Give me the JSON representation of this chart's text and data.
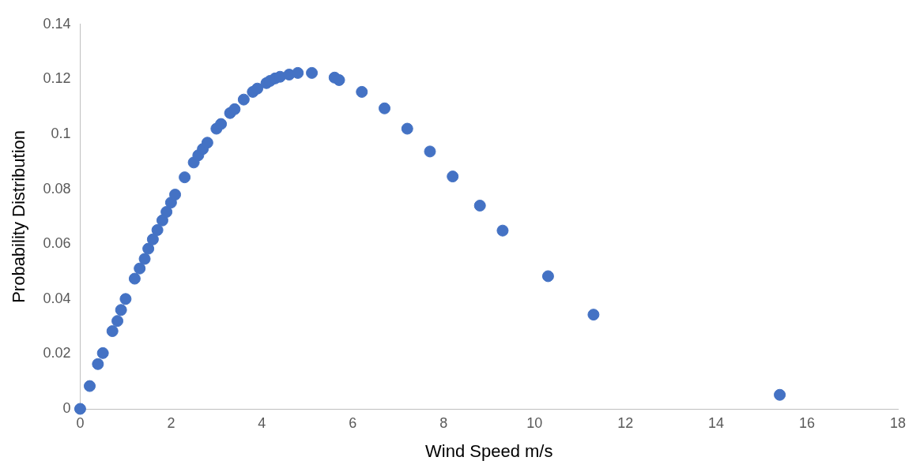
{
  "chart_data": {
    "type": "scatter",
    "xlabel": "Wind Speed m/s",
    "ylabel": "Probability Distribution",
    "x": [
      0,
      0.21,
      0.39,
      0.5,
      0.71,
      0.82,
      0.9,
      1.0,
      1.2,
      1.31,
      1.42,
      1.5,
      1.6,
      1.7,
      1.81,
      1.9,
      2.0,
      2.09,
      2.3,
      2.5,
      2.6,
      2.7,
      2.8,
      3.0,
      3.1,
      3.3,
      3.4,
      3.6,
      3.8,
      3.9,
      4.1,
      4.18,
      4.29,
      4.4,
      4.6,
      4.79,
      5.1,
      5.6,
      5.7,
      6.2,
      6.7,
      7.2,
      7.7,
      8.2,
      8.8,
      9.3,
      10.3,
      11.3,
      15.4
    ],
    "series": [
      {
        "color": "#4472c4",
        "values": [
          0,
          0.0083,
          0.0163,
          0.0203,
          0.0283,
          0.032,
          0.036,
          0.04,
          0.0474,
          0.0511,
          0.0546,
          0.0583,
          0.0617,
          0.0651,
          0.0686,
          0.0717,
          0.0751,
          0.078,
          0.0843,
          0.0897,
          0.0923,
          0.0946,
          0.0969,
          0.102,
          0.1037,
          0.1077,
          0.1091,
          0.1126,
          0.1154,
          0.1166,
          0.1186,
          0.1194,
          0.1203,
          0.1209,
          0.1217,
          0.1223,
          0.1223,
          0.1206,
          0.1197,
          0.1154,
          0.1094,
          0.102,
          0.0937,
          0.0846,
          0.074,
          0.0649,
          0.0483,
          0.0343,
          0.0051
        ]
      }
    ],
    "xlim": [
      0,
      18
    ],
    "xticks": [
      0,
      2,
      4,
      6,
      8,
      10,
      12,
      14,
      16,
      18
    ],
    "ylim": [
      0,
      0.14
    ],
    "yticks": [
      0,
      0.02,
      0.04,
      0.06,
      0.08,
      0.1,
      0.12,
      0.14
    ],
    "marker": "circle",
    "grid": false,
    "legend": false
  }
}
